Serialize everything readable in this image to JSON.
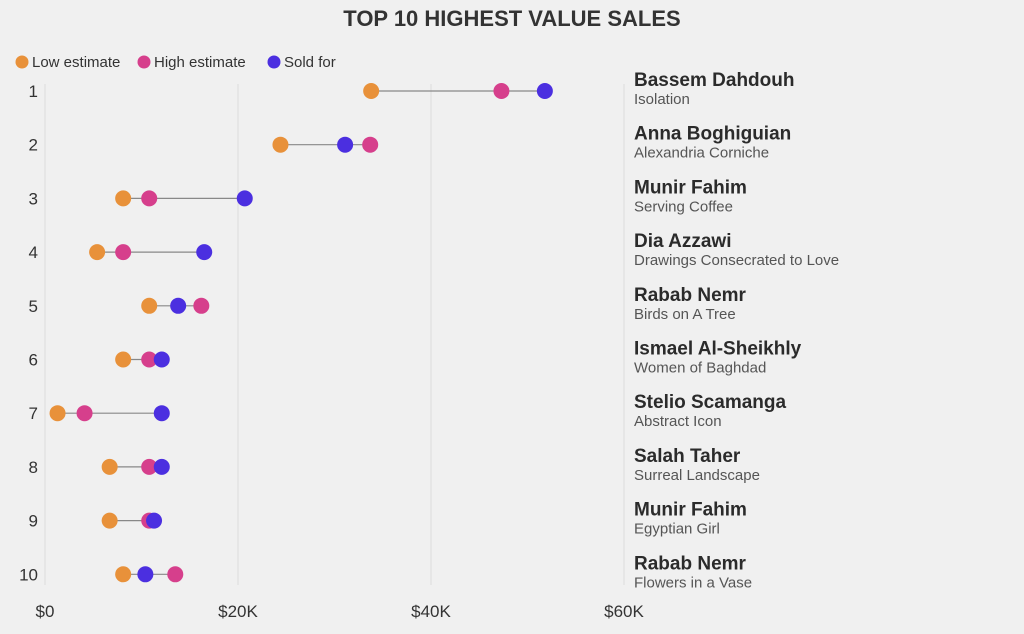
{
  "chart_data": {
    "type": "dumbbell",
    "title": "TOP 10 HIGHEST VALUE SALES",
    "xlim": [
      0,
      60000
    ],
    "x_ticks": [
      0,
      20000,
      40000,
      60000
    ],
    "x_tick_labels": [
      "$0",
      "$20K",
      "$40K",
      "$60K"
    ],
    "grid": true,
    "legend_position": "top-left",
    "series": [
      {
        "key": "low",
        "name": "Low estimate",
        "color": "#E8913A"
      },
      {
        "key": "high",
        "name": "High estimate",
        "color": "#D63F8C"
      },
      {
        "key": "sold",
        "name": "Sold for",
        "color": "#4B2FE0"
      }
    ],
    "rows": [
      {
        "rank": "1",
        "artist": "Bassem Dahdouh",
        "work": "Isolation",
        "low": 33800,
        "high": 47300,
        "sold": 51800
      },
      {
        "rank": "2",
        "artist": "Anna Boghiguian",
        "work": "Alexandria Corniche",
        "low": 24400,
        "high": 33700,
        "sold": 31100
      },
      {
        "rank": "3",
        "artist": "Munir Fahim",
        "work": "Serving Coffee",
        "low": 8100,
        "high": 10800,
        "sold": 20700
      },
      {
        "rank": "4",
        "artist": "Dia Azzawi",
        "work": "Drawings Consecrated to Love",
        "low": 5400,
        "high": 8100,
        "sold": 16500
      },
      {
        "rank": "5",
        "artist": "Rabab Nemr",
        "work": "Birds on A Tree",
        "low": 10800,
        "high": 16200,
        "sold": 13800
      },
      {
        "rank": "6",
        "artist": "Ismael Al-Sheikhly",
        "work": "Women of Baghdad",
        "low": 8100,
        "high": 10800,
        "sold": 12100
      },
      {
        "rank": "7",
        "artist": "Stelio Scamanga",
        "work": "Abstract Icon",
        "low": 1300,
        "high": 4100,
        "sold": 12100
      },
      {
        "rank": "8",
        "artist": "Salah Taher",
        "work": "Surreal Landscape",
        "low": 6700,
        "high": 10800,
        "sold": 12100
      },
      {
        "rank": "9",
        "artist": "Munir Fahim",
        "work": "Egyptian Girl",
        "low": 6700,
        "high": 10800,
        "sold": 11300
      },
      {
        "rank": "10",
        "artist": "Rabab Nemr",
        "work": "Flowers in a Vase",
        "low": 8100,
        "high": 13500,
        "sold": 10400
      }
    ]
  }
}
